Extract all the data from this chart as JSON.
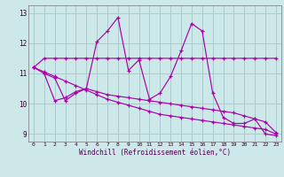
{
  "xlabel": "Windchill (Refroidissement éolien,°C)",
  "bg_color": "#cce8e8",
  "grid_color": "#aacccc",
  "line_color": "#aa00aa",
  "xlim": [
    -0.5,
    23.5
  ],
  "ylim": [
    8.75,
    13.25
  ],
  "yticks": [
    9,
    10,
    11,
    12,
    13
  ],
  "xticks": [
    0,
    1,
    2,
    3,
    4,
    5,
    6,
    7,
    8,
    9,
    10,
    11,
    12,
    13,
    14,
    15,
    16,
    17,
    18,
    19,
    20,
    21,
    22,
    23
  ],
  "line1_x": [
    0,
    1,
    2,
    3,
    4,
    5,
    6,
    7,
    8,
    9,
    10,
    11,
    12,
    13,
    14,
    15,
    16,
    17,
    18,
    19,
    20,
    21,
    22,
    23
  ],
  "line1_y": [
    11.2,
    11.5,
    11.5,
    11.5,
    11.5,
    11.5,
    11.5,
    11.5,
    11.5,
    11.5,
    11.5,
    11.5,
    11.5,
    11.5,
    11.5,
    11.5,
    11.5,
    11.5,
    11.5,
    11.5,
    11.5,
    11.5,
    11.5,
    11.5
  ],
  "line2_x": [
    0,
    1,
    2,
    3,
    4,
    5,
    6,
    7,
    8,
    9,
    10,
    11,
    12,
    13,
    14,
    15,
    16,
    17,
    18,
    19,
    20,
    21,
    22,
    23
  ],
  "line2_y": [
    11.2,
    11.05,
    10.9,
    10.75,
    10.6,
    10.45,
    10.3,
    10.15,
    10.05,
    9.95,
    9.85,
    9.75,
    9.65,
    9.6,
    9.55,
    9.5,
    9.45,
    9.4,
    9.35,
    9.3,
    9.25,
    9.2,
    9.15,
    9.0
  ],
  "line3_x": [
    0,
    1,
    2,
    3,
    4,
    5,
    6,
    7,
    8,
    9,
    10,
    11,
    12,
    13,
    14,
    15,
    16,
    17,
    18,
    19,
    20,
    21,
    22,
    23
  ],
  "line3_y": [
    11.2,
    11.0,
    10.1,
    10.2,
    10.4,
    10.5,
    10.4,
    10.3,
    10.25,
    10.2,
    10.15,
    10.1,
    10.05,
    10.0,
    9.95,
    9.9,
    9.85,
    9.8,
    9.75,
    9.7,
    9.6,
    9.5,
    9.4,
    9.05
  ],
  "line4_x": [
    1,
    2,
    3,
    4,
    5,
    6,
    7,
    8,
    9,
    10,
    11,
    12,
    13,
    14,
    15,
    16,
    17,
    18,
    19,
    20,
    21,
    22,
    23
  ],
  "line4_y": [
    11.0,
    10.85,
    10.1,
    10.35,
    10.5,
    12.05,
    12.4,
    12.85,
    11.1,
    11.45,
    10.15,
    10.35,
    10.9,
    11.75,
    12.65,
    12.4,
    10.35,
    9.55,
    9.35,
    9.35,
    9.5,
    9.0,
    8.95
  ]
}
